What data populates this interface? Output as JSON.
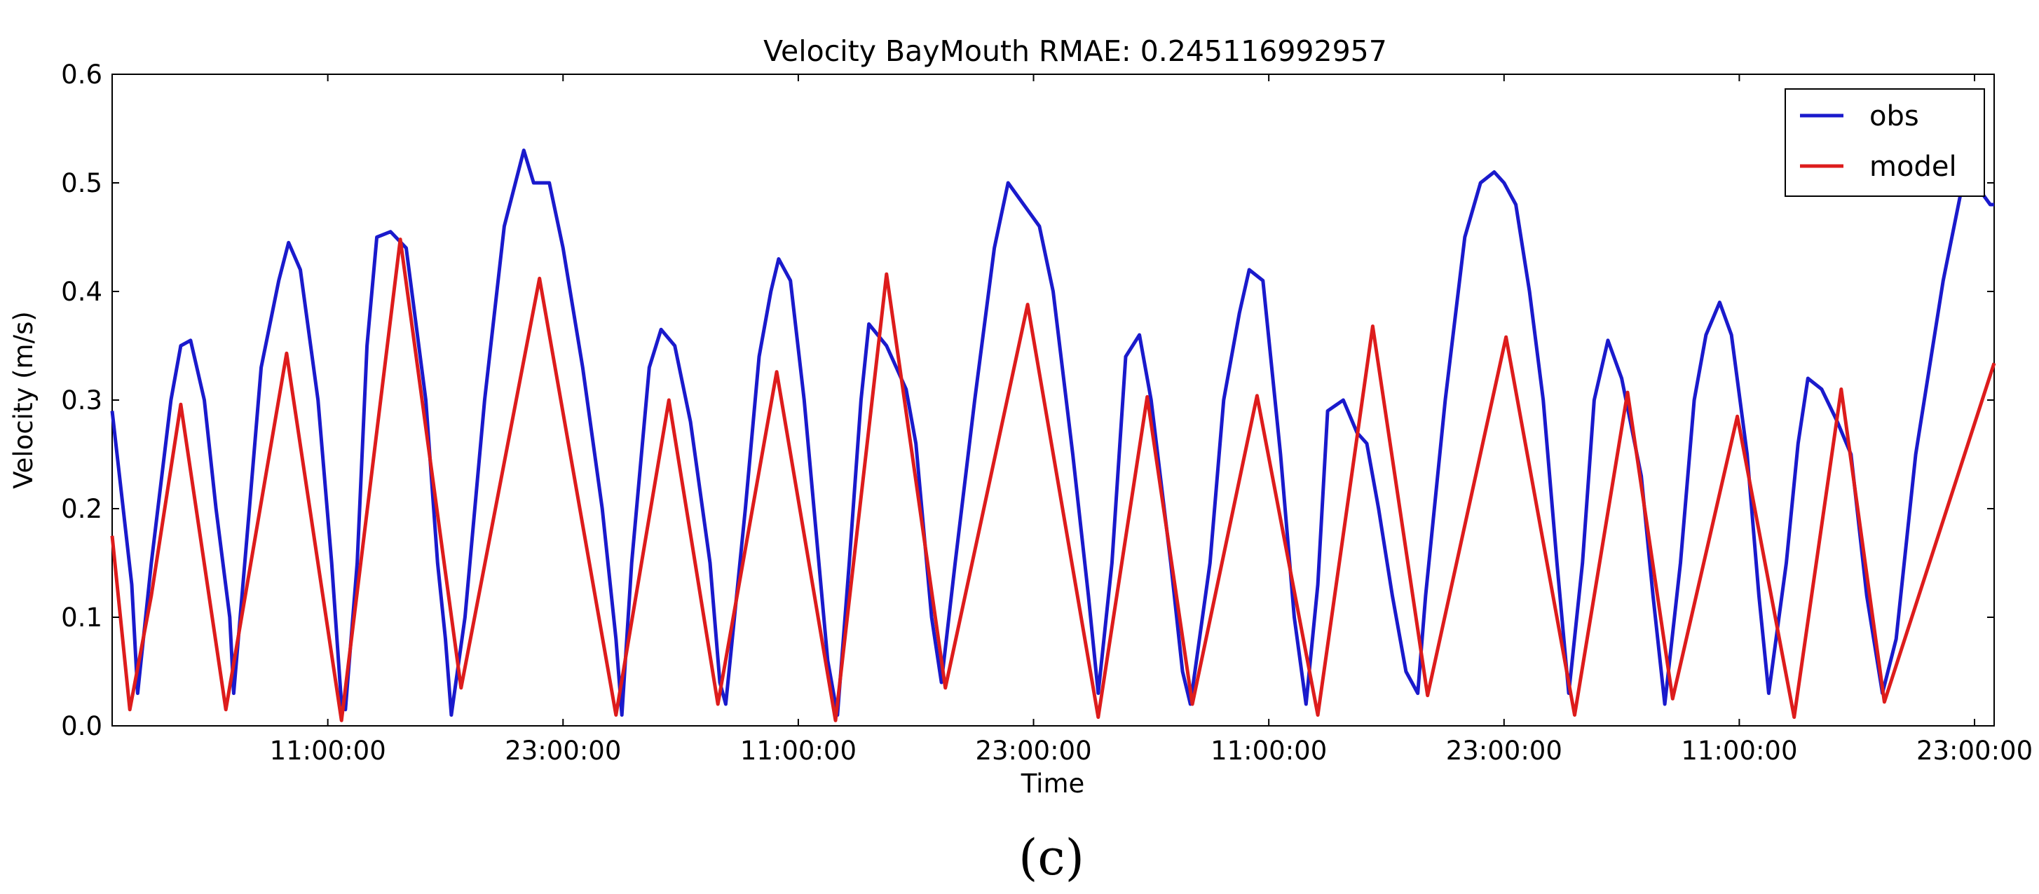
{
  "chart_data": {
    "type": "line",
    "title": "Velocity BayMouth RMAE: 0.245116992957",
    "xlabel": "Time",
    "ylabel": "Velocity (m/s)",
    "panel_label": "(c)",
    "ylim": [
      0,
      0.6
    ],
    "xlim": [
      0,
      96
    ],
    "y_ticks": [
      0.0,
      0.1,
      0.2,
      0.3,
      0.4,
      0.5,
      0.6
    ],
    "y_tick_labels": [
      "0.0",
      "0.1",
      "0.2",
      "0.3",
      "0.4",
      "0.5",
      "0.6"
    ],
    "x_ticks": [
      {
        "x": 11,
        "label": "11:00:00"
      },
      {
        "x": 23,
        "label": "23:00:00"
      },
      {
        "x": 35,
        "label": "11:00:00"
      },
      {
        "x": 47,
        "label": "23:00:00"
      },
      {
        "x": 59,
        "label": "11:00:00"
      },
      {
        "x": 71,
        "label": "23:00:00"
      },
      {
        "x": 83,
        "label": "11:00:00"
      },
      {
        "x": 95,
        "label": "23:00:00"
      }
    ],
    "grid": false,
    "legend_position": "top-right",
    "series": [
      {
        "name": "obs",
        "color": "#1a1acc",
        "points": [
          [
            0,
            0.29
          ],
          [
            1,
            0.13
          ],
          [
            1.3,
            0.03
          ],
          [
            2,
            0.15
          ],
          [
            3,
            0.3
          ],
          [
            3.5,
            0.35
          ],
          [
            4,
            0.355
          ],
          [
            4.7,
            0.3
          ],
          [
            5.3,
            0.2
          ],
          [
            6,
            0.1
          ],
          [
            6.2,
            0.03
          ],
          [
            7,
            0.2
          ],
          [
            7.6,
            0.33
          ],
          [
            8.5,
            0.41
          ],
          [
            9,
            0.445
          ],
          [
            9.6,
            0.42
          ],
          [
            10.5,
            0.3
          ],
          [
            11.2,
            0.15
          ],
          [
            11.7,
            0.02
          ],
          [
            11.9,
            0.015
          ],
          [
            12.5,
            0.15
          ],
          [
            13,
            0.35
          ],
          [
            13.5,
            0.45
          ],
          [
            14.2,
            0.455
          ],
          [
            15,
            0.44
          ],
          [
            16,
            0.3
          ],
          [
            16.6,
            0.15
          ],
          [
            17,
            0.08
          ],
          [
            17.3,
            0.01
          ],
          [
            18,
            0.1
          ],
          [
            19,
            0.3
          ],
          [
            20,
            0.46
          ],
          [
            21,
            0.53
          ],
          [
            21.5,
            0.5
          ],
          [
            22.3,
            0.5
          ],
          [
            23,
            0.44
          ],
          [
            24,
            0.33
          ],
          [
            25,
            0.2
          ],
          [
            25.7,
            0.08
          ],
          [
            26,
            0.01
          ],
          [
            26.5,
            0.15
          ],
          [
            27.4,
            0.33
          ],
          [
            28,
            0.365
          ],
          [
            28.7,
            0.35
          ],
          [
            29.5,
            0.28
          ],
          [
            30.5,
            0.15
          ],
          [
            31,
            0.04
          ],
          [
            31.3,
            0.02
          ],
          [
            32.3,
            0.2
          ],
          [
            33,
            0.34
          ],
          [
            33.6,
            0.4
          ],
          [
            34,
            0.43
          ],
          [
            34.6,
            0.41
          ],
          [
            35.3,
            0.3
          ],
          [
            35.8,
            0.2
          ],
          [
            36.5,
            0.06
          ],
          [
            37,
            0.01
          ],
          [
            37.6,
            0.15
          ],
          [
            38.2,
            0.3
          ],
          [
            38.6,
            0.37
          ],
          [
            39.5,
            0.35
          ],
          [
            40.5,
            0.31
          ],
          [
            41,
            0.26
          ],
          [
            41.8,
            0.1
          ],
          [
            42.3,
            0.04
          ],
          [
            43,
            0.15
          ],
          [
            44,
            0.3
          ],
          [
            45,
            0.44
          ],
          [
            45.7,
            0.5
          ],
          [
            46.5,
            0.48
          ],
          [
            47.3,
            0.46
          ],
          [
            48,
            0.4
          ],
          [
            49,
            0.25
          ],
          [
            49.8,
            0.12
          ],
          [
            50.3,
            0.03
          ],
          [
            51,
            0.15
          ],
          [
            51.7,
            0.34
          ],
          [
            52.4,
            0.36
          ],
          [
            53,
            0.3
          ],
          [
            54,
            0.15
          ],
          [
            54.6,
            0.05
          ],
          [
            55,
            0.02
          ],
          [
            56,
            0.15
          ],
          [
            56.7,
            0.3
          ],
          [
            57.5,
            0.38
          ],
          [
            58,
            0.42
          ],
          [
            58.7,
            0.41
          ],
          [
            59.6,
            0.25
          ],
          [
            60.3,
            0.1
          ],
          [
            60.9,
            0.02
          ],
          [
            61.5,
            0.13
          ],
          [
            62,
            0.29
          ],
          [
            62.8,
            0.3
          ],
          [
            63.5,
            0.27
          ],
          [
            64,
            0.26
          ],
          [
            64.6,
            0.2
          ],
          [
            65.3,
            0.12
          ],
          [
            66,
            0.05
          ],
          [
            66.6,
            0.03
          ],
          [
            67,
            0.12
          ],
          [
            68,
            0.3
          ],
          [
            69,
            0.45
          ],
          [
            69.8,
            0.5
          ],
          [
            70.5,
            0.51
          ],
          [
            71,
            0.5
          ],
          [
            71.6,
            0.48
          ],
          [
            72.3,
            0.4
          ],
          [
            73,
            0.3
          ],
          [
            73.7,
            0.15
          ],
          [
            74.3,
            0.03
          ],
          [
            75,
            0.15
          ],
          [
            75.6,
            0.3
          ],
          [
            76.3,
            0.355
          ],
          [
            77,
            0.32
          ],
          [
            78,
            0.23
          ],
          [
            78.6,
            0.12
          ],
          [
            79.2,
            0.02
          ],
          [
            80,
            0.15
          ],
          [
            80.7,
            0.3
          ],
          [
            81.3,
            0.36
          ],
          [
            82,
            0.39
          ],
          [
            82.6,
            0.36
          ],
          [
            83.4,
            0.25
          ],
          [
            84,
            0.12
          ],
          [
            84.5,
            0.03
          ],
          [
            85.4,
            0.15
          ],
          [
            86,
            0.26
          ],
          [
            86.5,
            0.32
          ],
          [
            87.2,
            0.31
          ],
          [
            88,
            0.28
          ],
          [
            88.7,
            0.25
          ],
          [
            89.5,
            0.12
          ],
          [
            90.3,
            0.03
          ],
          [
            91,
            0.08
          ],
          [
            92,
            0.25
          ],
          [
            93.4,
            0.41
          ],
          [
            94.4,
            0.5
          ],
          [
            95,
            0.51
          ],
          [
            95.4,
            0.49
          ],
          [
            95.8,
            0.48
          ],
          [
            96,
            0.48
          ]
        ]
      },
      {
        "name": "model",
        "color": "#dd1c1c",
        "points": [
          [
            0,
            0.175
          ],
          [
            0.9,
            0.015
          ],
          [
            2,
            0.12
          ],
          [
            3.5,
            0.296
          ],
          [
            5.8,
            0.015
          ],
          [
            8.9,
            0.343
          ],
          [
            11.7,
            0.005
          ],
          [
            14.7,
            0.448
          ],
          [
            17.8,
            0.035
          ],
          [
            21.8,
            0.412
          ],
          [
            25.7,
            0.01
          ],
          [
            28.4,
            0.3
          ],
          [
            30.9,
            0.02
          ],
          [
            33.9,
            0.326
          ],
          [
            36.9,
            0.005
          ],
          [
            39.5,
            0.416
          ],
          [
            42.5,
            0.035
          ],
          [
            46.7,
            0.388
          ],
          [
            50.3,
            0.008
          ],
          [
            52.8,
            0.303
          ],
          [
            55.1,
            0.02
          ],
          [
            58.4,
            0.304
          ],
          [
            61.5,
            0.01
          ],
          [
            64.3,
            0.368
          ],
          [
            67.1,
            0.028
          ],
          [
            71.1,
            0.358
          ],
          [
            74.6,
            0.01
          ],
          [
            77.3,
            0.307
          ],
          [
            79.6,
            0.025
          ],
          [
            82.9,
            0.285
          ],
          [
            85.8,
            0.008
          ],
          [
            88.2,
            0.31
          ],
          [
            90.4,
            0.022
          ],
          [
            96,
            0.334
          ]
        ]
      }
    ]
  }
}
